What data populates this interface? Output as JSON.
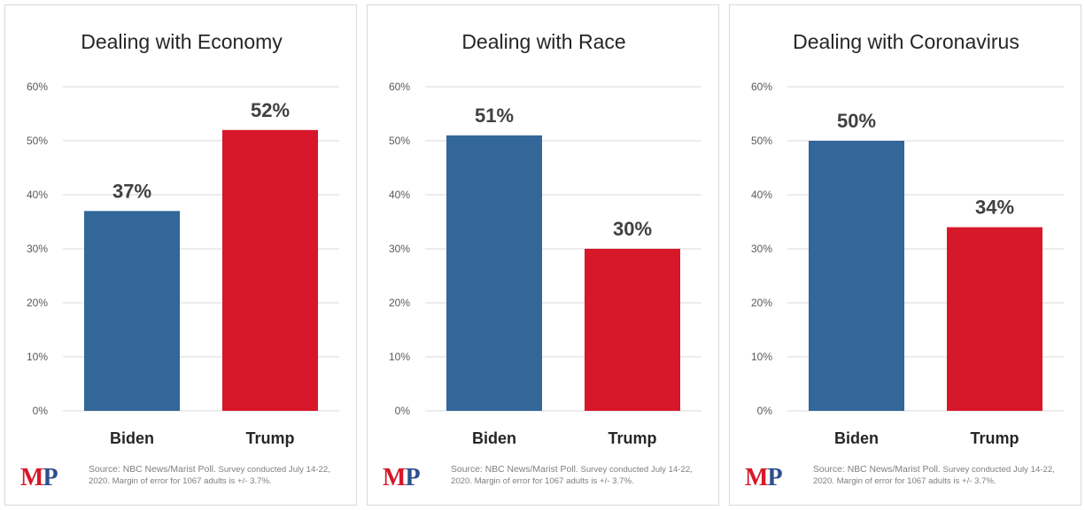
{
  "charts": [
    {
      "title": "Dealing with Economy",
      "source_lead": "Source: NBC News/Marist Poll.",
      "source_rest": " Survey conducted July 14-22, 2020. Margin of error for 1067 adults is +/- 3.7%."
    },
    {
      "title": "Dealing with Race",
      "source_lead": "Source: NBC News/Marist Poll.",
      "source_rest": " Survey conducted July 14-22, 2020. Margin of error for 1067 adults is +/- 3.7%."
    },
    {
      "title": "Dealing with Coronavirus",
      "source_lead": "Source: NBC News/Marist Poll.",
      "source_rest": " Survey conducted July 14-22, 2020. Margin of error for 1067 adults is +/- 3.7%."
    }
  ],
  "logo": {
    "m": "M",
    "p": "P"
  },
  "colors": {
    "biden": "#336699",
    "trump": "#d7182a",
    "grid": "#d9d9d9",
    "tick_text": "#595959"
  },
  "chart_data": [
    {
      "type": "bar",
      "title": "Dealing with Economy",
      "categories": [
        "Biden",
        "Trump"
      ],
      "values": [
        37,
        52
      ],
      "value_labels": [
        "37%",
        "52%"
      ],
      "yticks": [
        "0%",
        "10%",
        "20%",
        "30%",
        "40%",
        "50%",
        "60%"
      ],
      "ylim": [
        0,
        60
      ],
      "grid": true
    },
    {
      "type": "bar",
      "title": "Dealing with Race",
      "categories": [
        "Biden",
        "Trump"
      ],
      "values": [
        51,
        30
      ],
      "value_labels": [
        "51%",
        "30%"
      ],
      "yticks": [
        "0%",
        "10%",
        "20%",
        "30%",
        "40%",
        "50%",
        "60%"
      ],
      "ylim": [
        0,
        60
      ],
      "grid": true
    },
    {
      "type": "bar",
      "title": "Dealing with Coronavirus",
      "categories": [
        "Biden",
        "Trump"
      ],
      "values": [
        50,
        34
      ],
      "value_labels": [
        "50%",
        "34%"
      ],
      "yticks": [
        "0%",
        "10%",
        "20%",
        "30%",
        "40%",
        "50%",
        "60%"
      ],
      "ylim": [
        0,
        60
      ],
      "grid": true
    }
  ]
}
